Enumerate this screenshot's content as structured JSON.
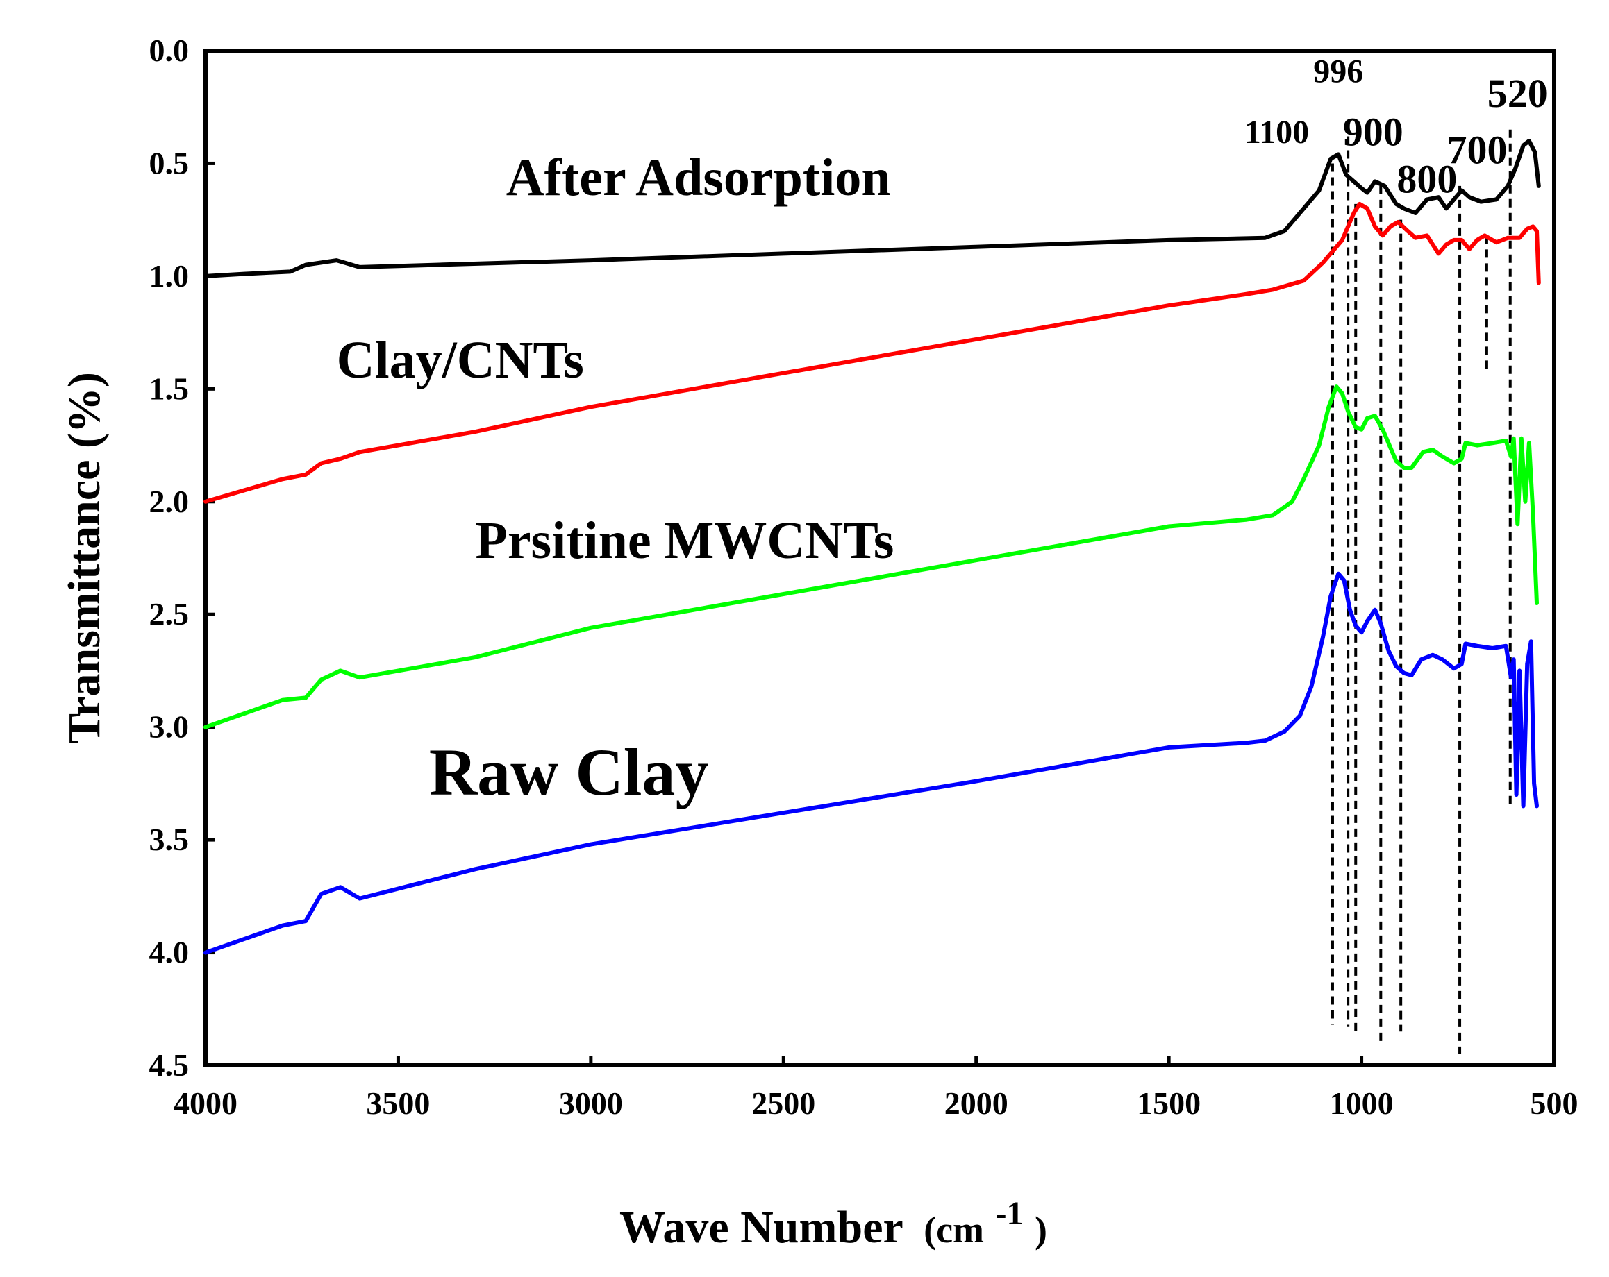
{
  "chart_data": {
    "type": "line",
    "title": "",
    "xlabel": "Wave Number",
    "xlabel_unit_prefix": "(cm",
    "xlabel_unit_sup": "-1",
    "xlabel_unit_suffix": ")",
    "ylabel": "Transmittance (%)",
    "xlim": [
      4000,
      500
    ],
    "ylim": [
      0.0,
      4.5
    ],
    "y_inverted": true,
    "grid": false,
    "xticks": [
      "4000",
      "3500",
      "3000",
      "2500",
      "2000",
      "1500",
      "1000",
      "500"
    ],
    "xtick_values": [
      4000,
      3500,
      3000,
      2500,
      2000,
      1500,
      1000,
      500
    ],
    "yticks": [
      "0.0",
      "0.5",
      "1.0",
      "1.5",
      "2.0",
      "2.5",
      "3.0",
      "3.5",
      "4.0",
      "4.5"
    ],
    "ytick_values": [
      0.0,
      0.5,
      1.0,
      1.5,
      2.0,
      2.5,
      3.0,
      3.5,
      4.0,
      4.5
    ],
    "series": [
      {
        "name": "After Adsorption",
        "color": "#000000",
        "points": [
          [
            4000,
            1.0
          ],
          [
            3900,
            0.99
          ],
          [
            3780,
            0.98
          ],
          [
            3740,
            0.95
          ],
          [
            3700,
            0.94
          ],
          [
            3660,
            0.93
          ],
          [
            3600,
            0.96
          ],
          [
            3400,
            0.95
          ],
          [
            3000,
            0.93
          ],
          [
            2500,
            0.9
          ],
          [
            2000,
            0.87
          ],
          [
            1500,
            0.84
          ],
          [
            1250,
            0.83
          ],
          [
            1200,
            0.8
          ],
          [
            1150,
            0.7
          ],
          [
            1110,
            0.62
          ],
          [
            1080,
            0.48
          ],
          [
            1060,
            0.46
          ],
          [
            1040,
            0.55
          ],
          [
            1020,
            0.58
          ],
          [
            1000,
            0.61
          ],
          [
            985,
            0.63
          ],
          [
            965,
            0.58
          ],
          [
            940,
            0.6
          ],
          [
            910,
            0.68
          ],
          [
            890,
            0.7
          ],
          [
            860,
            0.72
          ],
          [
            830,
            0.66
          ],
          [
            800,
            0.65
          ],
          [
            780,
            0.7
          ],
          [
            760,
            0.66
          ],
          [
            740,
            0.62
          ],
          [
            720,
            0.65
          ],
          [
            690,
            0.67
          ],
          [
            650,
            0.66
          ],
          [
            620,
            0.6
          ],
          [
            600,
            0.52
          ],
          [
            580,
            0.42
          ],
          [
            565,
            0.4
          ],
          [
            550,
            0.45
          ],
          [
            540,
            0.6
          ]
        ]
      },
      {
        "name": "Clay/CNTs",
        "color": "#ff0000",
        "points": [
          [
            4000,
            2.0
          ],
          [
            3900,
            1.95
          ],
          [
            3800,
            1.9
          ],
          [
            3740,
            1.88
          ],
          [
            3700,
            1.83
          ],
          [
            3650,
            1.81
          ],
          [
            3600,
            1.78
          ],
          [
            3300,
            1.69
          ],
          [
            3000,
            1.58
          ],
          [
            2500,
            1.43
          ],
          [
            2000,
            1.28
          ],
          [
            1500,
            1.13
          ],
          [
            1300,
            1.08
          ],
          [
            1230,
            1.06
          ],
          [
            1150,
            1.02
          ],
          [
            1100,
            0.94
          ],
          [
            1050,
            0.84
          ],
          [
            1020,
            0.72
          ],
          [
            1005,
            0.68
          ],
          [
            985,
            0.7
          ],
          [
            965,
            0.78
          ],
          [
            945,
            0.82
          ],
          [
            925,
            0.78
          ],
          [
            905,
            0.76
          ],
          [
            880,
            0.8
          ],
          [
            860,
            0.83
          ],
          [
            830,
            0.82
          ],
          [
            800,
            0.9
          ],
          [
            780,
            0.86
          ],
          [
            760,
            0.84
          ],
          [
            740,
            0.84
          ],
          [
            720,
            0.88
          ],
          [
            700,
            0.84
          ],
          [
            680,
            0.82
          ],
          [
            650,
            0.85
          ],
          [
            620,
            0.83
          ],
          [
            590,
            0.83
          ],
          [
            570,
            0.79
          ],
          [
            555,
            0.78
          ],
          [
            545,
            0.8
          ],
          [
            540,
            1.03
          ]
        ]
      },
      {
        "name": "Prsitine MWCNTs",
        "color": "#00ff00",
        "points": [
          [
            4000,
            3.0
          ],
          [
            3900,
            2.94
          ],
          [
            3800,
            2.88
          ],
          [
            3740,
            2.87
          ],
          [
            3700,
            2.79
          ],
          [
            3650,
            2.75
          ],
          [
            3600,
            2.78
          ],
          [
            3300,
            2.69
          ],
          [
            3000,
            2.56
          ],
          [
            2500,
            2.41
          ],
          [
            2000,
            2.26
          ],
          [
            1500,
            2.11
          ],
          [
            1300,
            2.08
          ],
          [
            1230,
            2.06
          ],
          [
            1180,
            2.0
          ],
          [
            1150,
            1.9
          ],
          [
            1110,
            1.75
          ],
          [
            1085,
            1.58
          ],
          [
            1065,
            1.49
          ],
          [
            1050,
            1.52
          ],
          [
            1035,
            1.6
          ],
          [
            1015,
            1.67
          ],
          [
            1000,
            1.68
          ],
          [
            985,
            1.63
          ],
          [
            965,
            1.62
          ],
          [
            945,
            1.68
          ],
          [
            930,
            1.74
          ],
          [
            910,
            1.82
          ],
          [
            890,
            1.85
          ],
          [
            870,
            1.85
          ],
          [
            840,
            1.78
          ],
          [
            815,
            1.77
          ],
          [
            790,
            1.8
          ],
          [
            760,
            1.83
          ],
          [
            740,
            1.81
          ],
          [
            730,
            1.74
          ],
          [
            700,
            1.75
          ],
          [
            660,
            1.74
          ],
          [
            625,
            1.73
          ],
          [
            612,
            1.8
          ],
          [
            605,
            1.72
          ],
          [
            595,
            2.1
          ],
          [
            585,
            1.72
          ],
          [
            575,
            2.0
          ],
          [
            565,
            1.74
          ],
          [
            555,
            2.05
          ],
          [
            545,
            2.45
          ]
        ]
      },
      {
        "name": "Raw Clay",
        "color": "#0000ff",
        "points": [
          [
            4000,
            4.0
          ],
          [
            3900,
            3.94
          ],
          [
            3800,
            3.88
          ],
          [
            3740,
            3.86
          ],
          [
            3700,
            3.74
          ],
          [
            3650,
            3.71
          ],
          [
            3600,
            3.76
          ],
          [
            3300,
            3.63
          ],
          [
            3000,
            3.52
          ],
          [
            2500,
            3.38
          ],
          [
            2000,
            3.24
          ],
          [
            1500,
            3.09
          ],
          [
            1300,
            3.07
          ],
          [
            1250,
            3.06
          ],
          [
            1200,
            3.02
          ],
          [
            1160,
            2.95
          ],
          [
            1130,
            2.82
          ],
          [
            1100,
            2.6
          ],
          [
            1080,
            2.42
          ],
          [
            1060,
            2.32
          ],
          [
            1045,
            2.35
          ],
          [
            1030,
            2.48
          ],
          [
            1015,
            2.55
          ],
          [
            1000,
            2.58
          ],
          [
            985,
            2.53
          ],
          [
            965,
            2.48
          ],
          [
            950,
            2.54
          ],
          [
            930,
            2.66
          ],
          [
            910,
            2.73
          ],
          [
            890,
            2.76
          ],
          [
            870,
            2.77
          ],
          [
            845,
            2.7
          ],
          [
            815,
            2.68
          ],
          [
            790,
            2.7
          ],
          [
            760,
            2.74
          ],
          [
            740,
            2.72
          ],
          [
            730,
            2.63
          ],
          [
            700,
            2.64
          ],
          [
            660,
            2.65
          ],
          [
            625,
            2.64
          ],
          [
            612,
            2.78
          ],
          [
            605,
            2.7
          ],
          [
            598,
            3.3
          ],
          [
            590,
            2.75
          ],
          [
            580,
            3.35
          ],
          [
            570,
            2.72
          ],
          [
            560,
            2.62
          ],
          [
            552,
            3.25
          ],
          [
            545,
            3.35
          ]
        ]
      }
    ],
    "series_labels": [
      {
        "text": "After Adsorption",
        "x": 3220,
        "y": 0.64,
        "size": "lg"
      },
      {
        "text": "Clay/CNTs",
        "x": 3660,
        "y": 1.45,
        "size": "lg"
      },
      {
        "text": "Prsitine MWCNTs",
        "x": 3300,
        "y": 2.25,
        "size": "lg"
      },
      {
        "text": "Raw Clay",
        "x": 3420,
        "y": 3.3,
        "size": "xl"
      }
    ],
    "peak_annotations": [
      {
        "label": "1100",
        "x": 1100,
        "label_x": 1220,
        "label_y": 0.41
      },
      {
        "label": "996",
        "x": 996,
        "label_x": 1060,
        "label_y": 0.14
      },
      {
        "label": "900",
        "x": 900,
        "label_x": 970,
        "label_y": 0.42
      },
      {
        "label": "800",
        "x": 800,
        "label_x": 830,
        "label_y": 0.63
      },
      {
        "label": "700",
        "x": 700,
        "label_x": 700,
        "label_y": 0.5
      },
      {
        "label": "520",
        "x": 520,
        "label_x": 595,
        "label_y": 0.25
      }
    ],
    "dashed_lines": [
      {
        "x": 1075,
        "y_top": 0.5,
        "y_bottom": 4.32
      },
      {
        "x": 1035,
        "y_top": 0.38,
        "y_bottom": 4.33
      },
      {
        "x": 1015,
        "y_top": 0.68,
        "y_bottom": 4.35
      },
      {
        "x": 950,
        "y_top": 0.6,
        "y_bottom": 4.4
      },
      {
        "x": 898,
        "y_top": 0.75,
        "y_bottom": 4.35
      },
      {
        "x": 745,
        "y_top": 0.6,
        "y_bottom": 4.45
      },
      {
        "x": 675,
        "y_top": 0.82,
        "y_bottom": 1.42
      },
      {
        "x": 614,
        "y_top": 0.35,
        "y_bottom": 3.35
      }
    ]
  }
}
